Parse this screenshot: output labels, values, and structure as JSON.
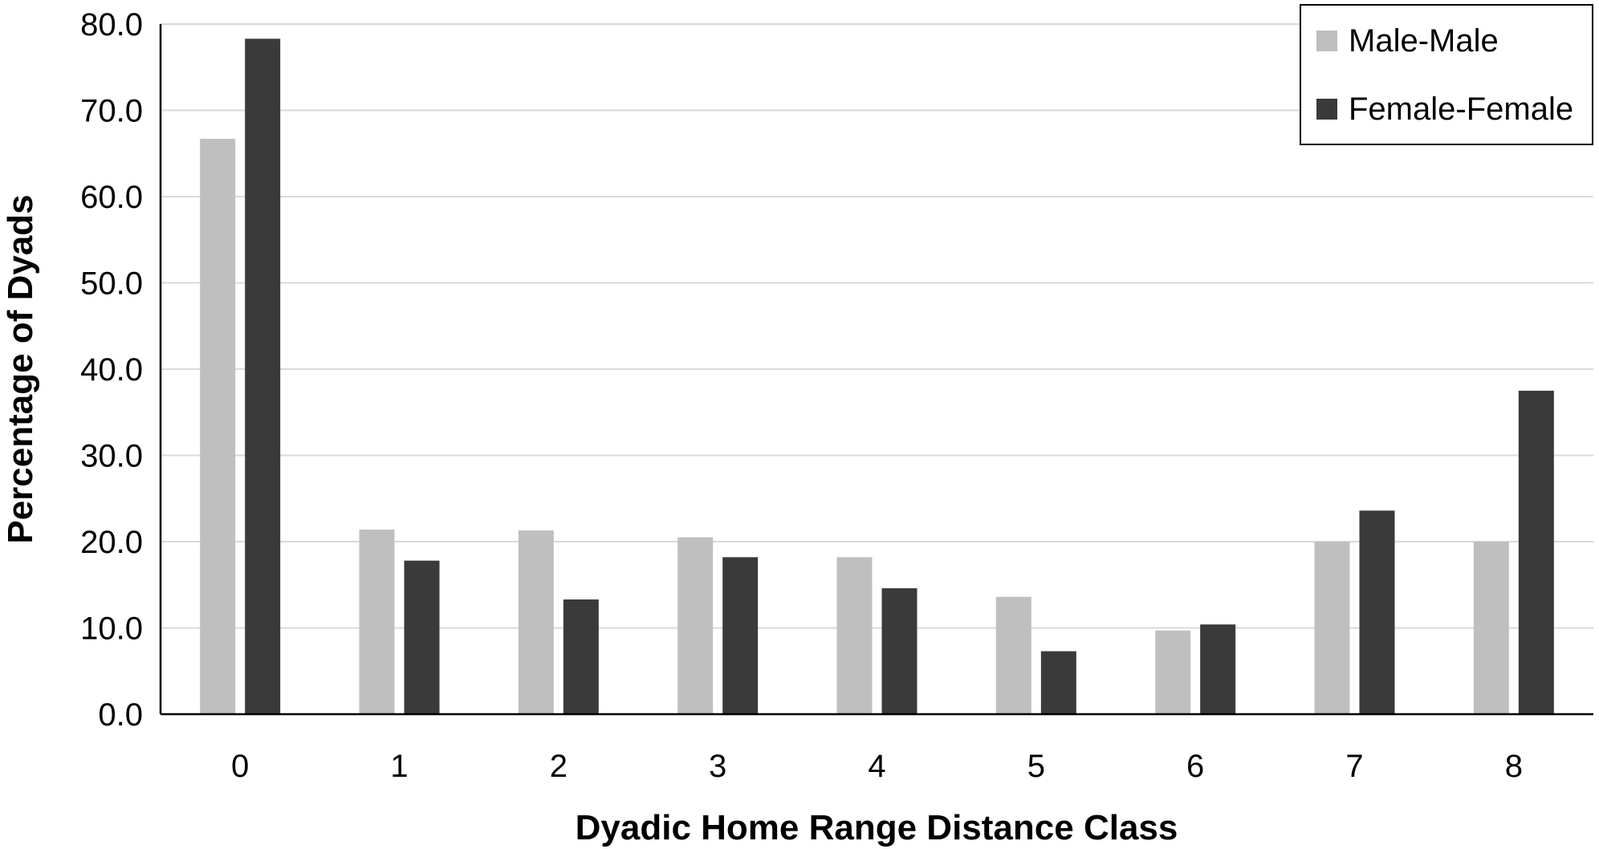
{
  "chart_data": {
    "type": "bar",
    "categories": [
      "0",
      "1",
      "2",
      "3",
      "4",
      "5",
      "6",
      "7",
      "8"
    ],
    "series": [
      {
        "name": "Male-Male",
        "color": "#bfbfbf",
        "values": [
          66.7,
          21.4,
          21.3,
          20.5,
          18.2,
          13.6,
          9.7,
          20.0,
          20.0
        ]
      },
      {
        "name": "Female-Female",
        "color": "#3a3a3a",
        "values": [
          78.3,
          17.8,
          13.3,
          18.2,
          14.6,
          7.3,
          10.4,
          23.6,
          37.5
        ]
      }
    ],
    "xlabel": "Dyadic Home Range Distance Class",
    "ylabel": "Percentage of Dyads",
    "ylim": [
      0,
      80
    ],
    "yticks": [
      "0.0",
      "10.0",
      "20.0",
      "30.0",
      "40.0",
      "50.0",
      "60.0",
      "70.0",
      "80.0"
    ],
    "grid": true,
    "legend_position": "top-right"
  }
}
